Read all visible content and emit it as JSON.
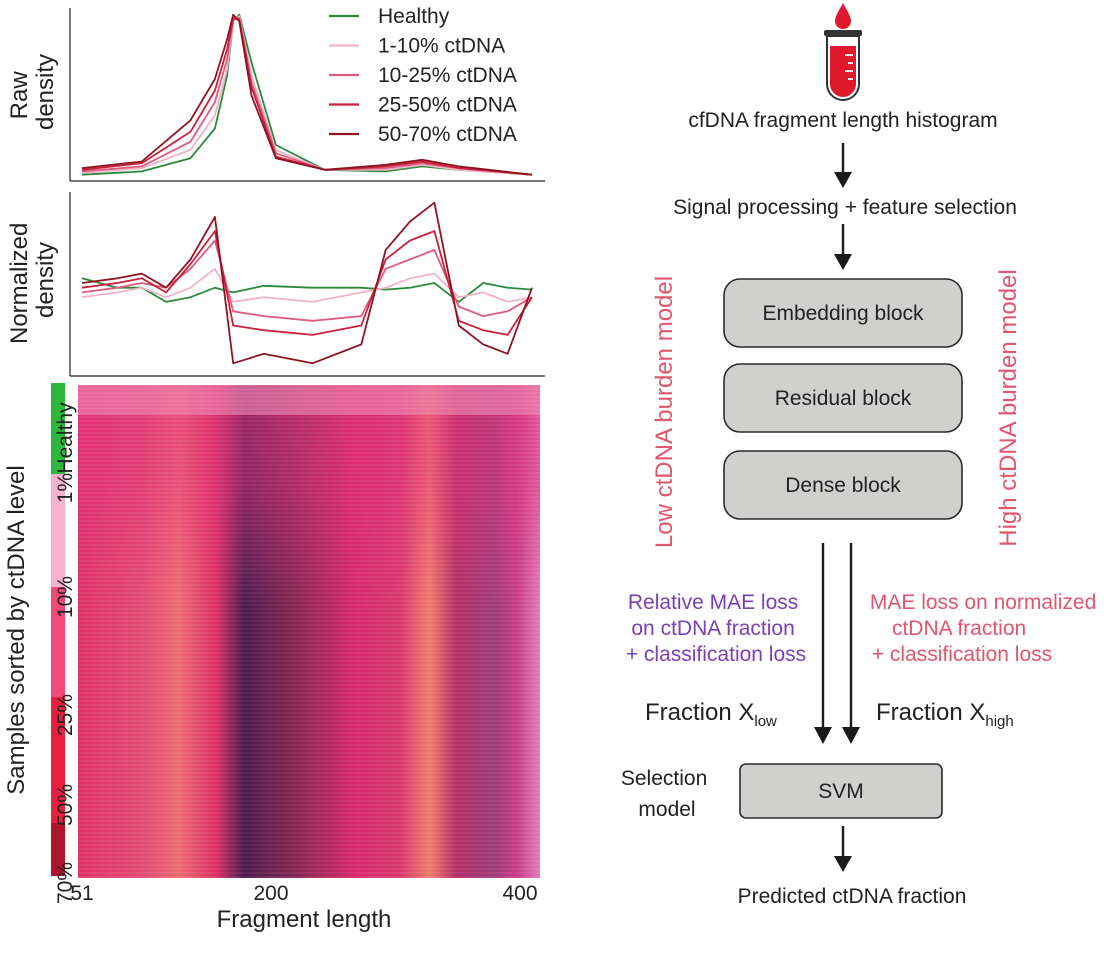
{
  "left_panel": {
    "raw_label_line1": "Raw",
    "raw_label_line2": "density",
    "norm_label_line1": "Normalized",
    "norm_label_line2": "density",
    "heatmap_ylabel": "Samples sorted by ctDNA level",
    "xlabel": "Fragment length",
    "x_ticks": [
      "51",
      "200",
      "400"
    ],
    "group_labels": [
      "Healthy",
      "1%",
      "10%",
      "25%",
      "50%",
      "70%"
    ],
    "group_colors": [
      "#2db83d",
      "#f7b2cf",
      "#ef4a78",
      "#e8203f",
      "#b0152e"
    ],
    "legend": [
      {
        "label": "Healthy",
        "color": "#2b8a3e"
      },
      {
        "label": "1-10% ctDNA",
        "color": "#f2b3c6"
      },
      {
        "label": "10-25% ctDNA",
        "color": "#e05a7e"
      },
      {
        "label": "25-50% ctDNA",
        "color": "#c8213f"
      },
      {
        "label": "50-70% ctDNA",
        "color": "#8e1424"
      }
    ]
  },
  "chart_data": [
    {
      "type": "line",
      "title": "",
      "xlabel": "",
      "ylabel": "Raw density",
      "xlim": [
        51,
        420
      ],
      "series": [
        {
          "name": "Healthy",
          "x": [
            51,
            100,
            140,
            160,
            170,
            175,
            180,
            190,
            210,
            250,
            300,
            330,
            360,
            420
          ],
          "y": [
            0.02,
            0.04,
            0.12,
            0.3,
            0.62,
            0.95,
            0.99,
            0.7,
            0.2,
            0.05,
            0.04,
            0.07,
            0.05,
            0.02
          ]
        },
        {
          "name": "1-10% ctDNA",
          "x": [
            51,
            100,
            140,
            160,
            170,
            175,
            180,
            190,
            210,
            250,
            300,
            330,
            360,
            420
          ],
          "y": [
            0.03,
            0.06,
            0.17,
            0.38,
            0.66,
            0.95,
            0.98,
            0.62,
            0.17,
            0.05,
            0.05,
            0.08,
            0.05,
            0.02
          ]
        },
        {
          "name": "10-25% ctDNA",
          "x": [
            51,
            100,
            140,
            160,
            170,
            175,
            180,
            190,
            210,
            250,
            300,
            330,
            360,
            420
          ],
          "y": [
            0.04,
            0.07,
            0.22,
            0.46,
            0.72,
            0.96,
            0.97,
            0.58,
            0.15,
            0.05,
            0.06,
            0.09,
            0.06,
            0.02
          ]
        },
        {
          "name": "25-50% ctDNA",
          "x": [
            51,
            100,
            140,
            160,
            170,
            175,
            180,
            190,
            210,
            250,
            300,
            330,
            360,
            420
          ],
          "y": [
            0.05,
            0.09,
            0.28,
            0.53,
            0.78,
            0.97,
            0.96,
            0.55,
            0.13,
            0.05,
            0.07,
            0.1,
            0.06,
            0.02
          ]
        },
        {
          "name": "50-70% ctDNA",
          "x": [
            51,
            100,
            140,
            160,
            170,
            175,
            180,
            190,
            210,
            250,
            300,
            330,
            360,
            420
          ],
          "y": [
            0.06,
            0.1,
            0.35,
            0.6,
            0.84,
            0.99,
            0.95,
            0.5,
            0.12,
            0.05,
            0.08,
            0.11,
            0.07,
            0.02
          ]
        }
      ]
    },
    {
      "type": "line",
      "title": "",
      "xlabel": "",
      "ylabel": "Normalized density",
      "xlim": [
        51,
        420
      ],
      "series": [
        {
          "name": "Healthy",
          "x": [
            51,
            80,
            100,
            120,
            140,
            160,
            175,
            200,
            240,
            280,
            300,
            320,
            340,
            360,
            380,
            400,
            420
          ],
          "y": [
            0.2,
            0.1,
            0.1,
            -0.05,
            0.0,
            0.1,
            0.05,
            0.12,
            0.1,
            0.1,
            0.08,
            0.1,
            0.15,
            -0.05,
            0.15,
            0.1,
            0.08
          ]
        },
        {
          "name": "1-10% ctDNA",
          "x": [
            51,
            80,
            100,
            120,
            140,
            160,
            175,
            200,
            240,
            280,
            300,
            320,
            340,
            360,
            380,
            400,
            420
          ],
          "y": [
            0.0,
            0.05,
            0.1,
            0.0,
            0.1,
            0.3,
            -0.05,
            0.0,
            -0.05,
            0.05,
            0.1,
            0.2,
            0.25,
            0.0,
            0.05,
            -0.05,
            0.0
          ]
        },
        {
          "name": "10-25% ctDNA",
          "x": [
            51,
            80,
            100,
            120,
            140,
            160,
            175,
            200,
            240,
            280,
            300,
            320,
            340,
            360,
            380,
            400,
            420
          ],
          "y": [
            0.05,
            0.1,
            0.15,
            0.1,
            0.3,
            0.6,
            -0.15,
            -0.2,
            -0.25,
            -0.2,
            0.3,
            0.4,
            0.5,
            -0.1,
            -0.2,
            -0.15,
            0.0
          ]
        },
        {
          "name": "25-50% ctDNA",
          "x": [
            51,
            80,
            100,
            120,
            140,
            160,
            175,
            200,
            240,
            280,
            300,
            320,
            340,
            360,
            380,
            400,
            420
          ],
          "y": [
            0.1,
            0.15,
            0.2,
            0.05,
            0.35,
            0.7,
            -0.3,
            -0.35,
            -0.4,
            -0.3,
            0.4,
            0.6,
            0.7,
            -0.25,
            -0.35,
            -0.4,
            0.0
          ]
        },
        {
          "name": "50-70% ctDNA",
          "x": [
            51,
            80,
            100,
            120,
            140,
            160,
            175,
            200,
            240,
            280,
            300,
            320,
            340,
            360,
            380,
            400,
            420
          ],
          "y": [
            0.15,
            0.2,
            0.25,
            0.1,
            0.4,
            0.85,
            -0.7,
            -0.6,
            -0.7,
            -0.5,
            0.5,
            0.8,
            1.0,
            -0.3,
            -0.5,
            -0.6,
            0.1
          ]
        }
      ]
    },
    {
      "type": "heatmap",
      "title": "",
      "xlabel": "Fragment length",
      "ylabel": "Samples sorted by ctDNA level",
      "x_ticks": [
        "51",
        "200",
        "400"
      ],
      "rows": [
        "Healthy",
        "1%",
        "10%",
        "25%",
        "50%",
        "70%"
      ]
    }
  ],
  "flow": {
    "histogram_label": "cfDNA fragment length histogram",
    "processing_label": "Signal processing + feature selection",
    "blocks": [
      "Embedding block",
      "Residual block",
      "Dense block"
    ],
    "low_model_label": "Low ctDNA burden model",
    "high_model_label": "High ctDNA burden model",
    "low_loss_lines": [
      "Relative MAE loss",
      "on ctDNA fraction",
      "+ classification loss"
    ],
    "high_loss_lines": [
      "MAE loss on normalized",
      "ctDNA fraction",
      "+ classification loss"
    ],
    "fraction_prefix": "Fraction X",
    "fraction_low_sub": "low",
    "fraction_high_sub": "high",
    "selection_line1": "Selection",
    "selection_line2": "model",
    "svm_label": "SVM",
    "output_label": "Predicted ctDNA fraction",
    "low_color": "#7b3fb5",
    "high_color": "#e0566f"
  }
}
